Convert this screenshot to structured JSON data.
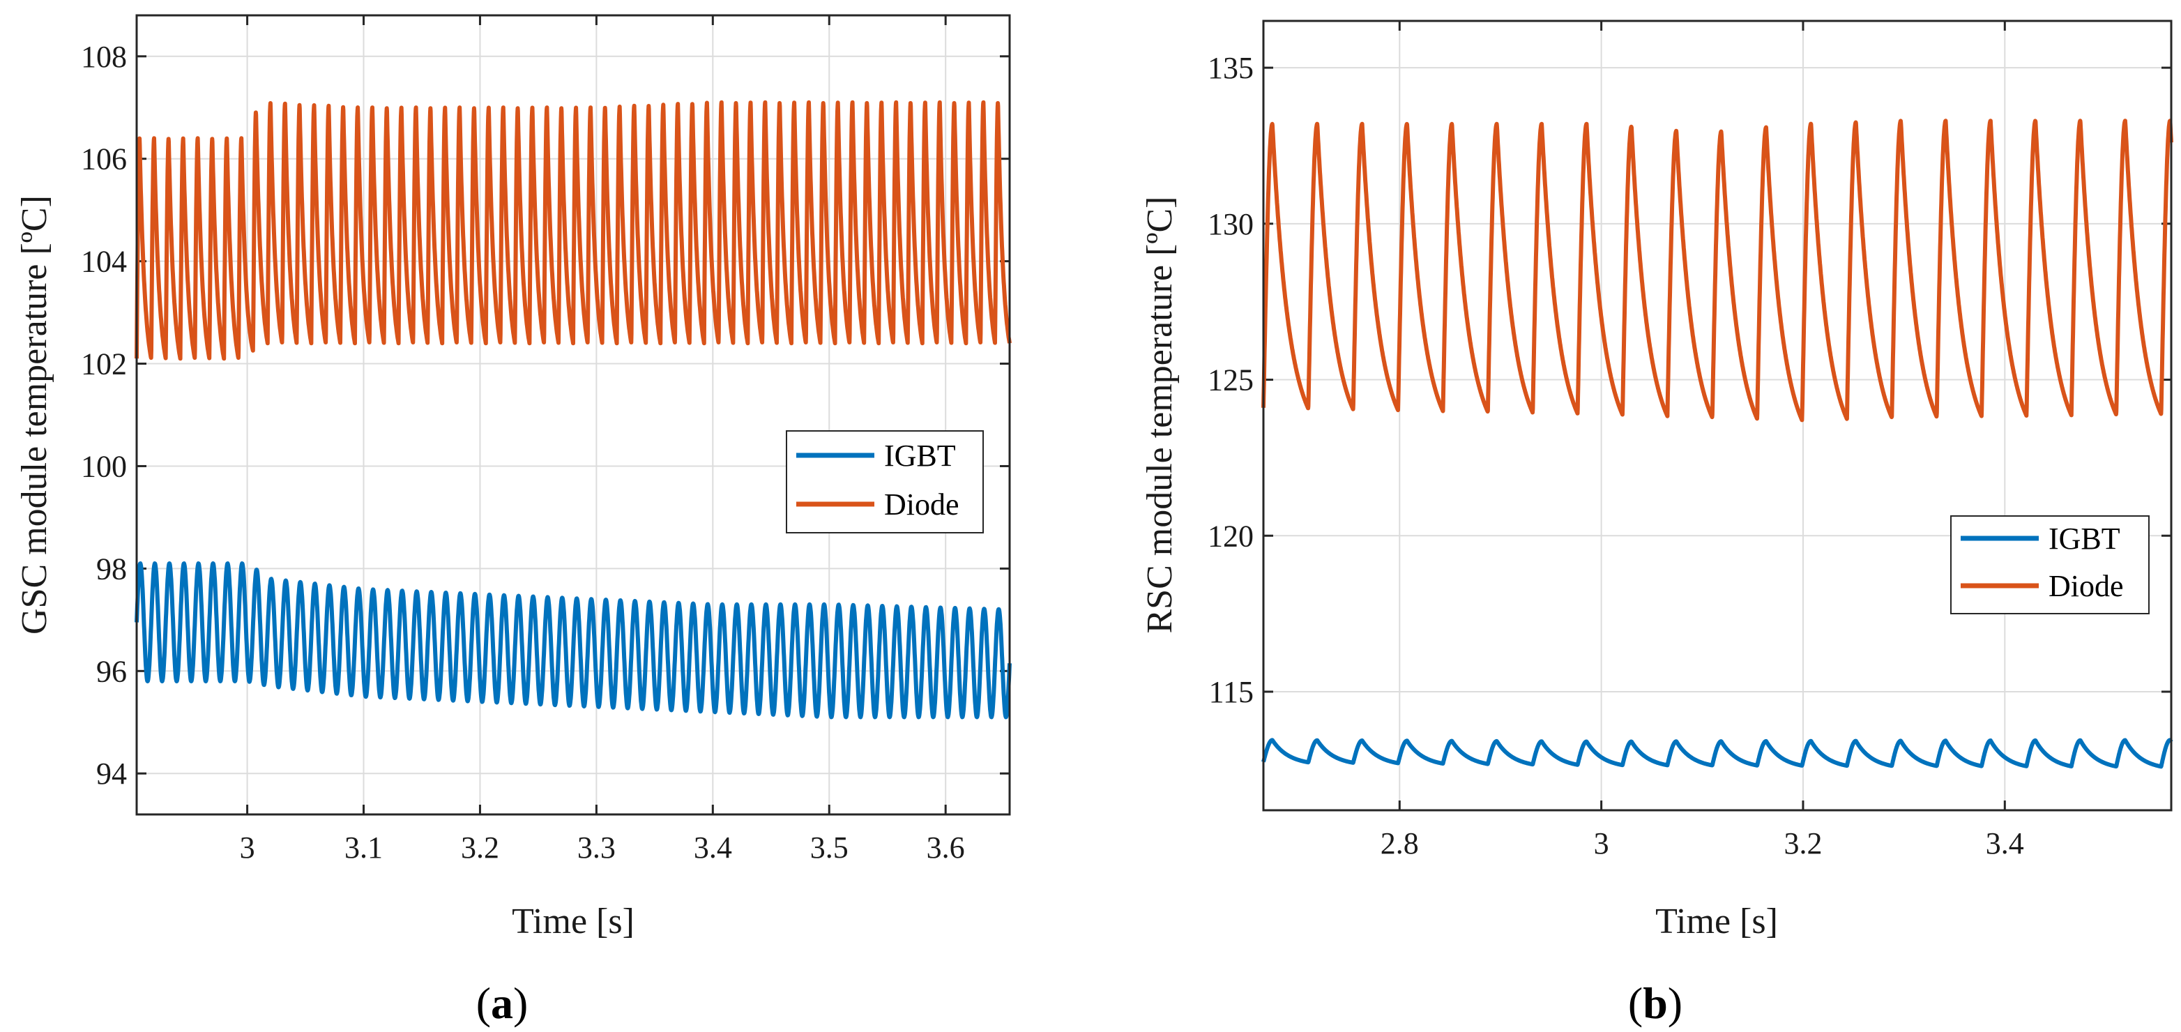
{
  "chart_data": [
    {
      "type": "line",
      "panel_label": {
        "open": "(",
        "letter": "a",
        "close": ")"
      },
      "title": "",
      "xlabel": "Time [s]",
      "ylabel": "GSC module temperature [ºC]",
      "xlim": [
        2.905,
        3.655
      ],
      "ylim": [
        93.2,
        108.8
      ],
      "xticks": [
        3.0,
        3.1,
        3.2,
        3.3,
        3.4,
        3.5,
        3.6
      ],
      "xtick_labels": [
        "3",
        "3.1",
        "3.2",
        "3.3",
        "3.4",
        "3.5",
        "3.6"
      ],
      "yticks": [
        94,
        96,
        98,
        100,
        102,
        104,
        106,
        108
      ],
      "ytick_labels": [
        "94",
        "96",
        "98",
        "100",
        "102",
        "104",
        "106",
        "108"
      ],
      "grid": true,
      "legend_position": "right-middle",
      "period_s": 0.0125,
      "series": [
        {
          "name": "IGBT",
          "color": "#0072BD",
          "waveform": "sine",
          "envelope_x": [
            2.905,
            3.0,
            3.02,
            3.1,
            3.2,
            3.3,
            3.4,
            3.5,
            3.655
          ],
          "envelope_max": [
            98.1,
            98.1,
            97.8,
            97.6,
            97.5,
            97.4,
            97.3,
            97.3,
            97.2
          ],
          "envelope_min": [
            95.8,
            95.8,
            95.7,
            95.5,
            95.4,
            95.3,
            95.2,
            95.1,
            95.1
          ]
        },
        {
          "name": "Diode",
          "color": "#D95319",
          "waveform": "sawtooth",
          "envelope_x": [
            2.905,
            3.0,
            3.01,
            3.1,
            3.2,
            3.3,
            3.4,
            3.5,
            3.655
          ],
          "envelope_max": [
            106.4,
            106.4,
            107.1,
            107.0,
            107.0,
            107.0,
            107.1,
            107.1,
            107.1
          ],
          "envelope_min": [
            102.1,
            102.1,
            102.4,
            102.4,
            102.4,
            102.4,
            102.4,
            102.4,
            102.4
          ]
        }
      ]
    },
    {
      "type": "line",
      "panel_label": {
        "open": "(",
        "letter": "b",
        "close": ")"
      },
      "title": "",
      "xlabel": "Time [s]",
      "ylabel": "RSC module temperature [ºC]",
      "xlim": [
        2.665,
        3.565
      ],
      "ylim": [
        111.2,
        136.5
      ],
      "xticks": [
        2.8,
        3.0,
        3.2,
        3.4
      ],
      "xtick_labels": [
        "2.8",
        "3",
        "3.2",
        "3.4"
      ],
      "yticks": [
        115,
        120,
        125,
        130,
        135
      ],
      "ytick_labels": [
        "115",
        "120",
        "125",
        "130",
        "135"
      ],
      "grid": true,
      "legend_position": "right-middle",
      "period_s": 0.0445,
      "series": [
        {
          "name": "IGBT",
          "color": "#0072BD",
          "waveform": "sawtooth",
          "envelope_x": [
            2.665,
            3.0,
            3.565
          ],
          "envelope_max": [
            113.45,
            113.4,
            113.45
          ],
          "envelope_min": [
            112.75,
            112.65,
            112.6
          ]
        },
        {
          "name": "Diode",
          "color": "#D95319",
          "waveform": "sawtooth",
          "envelope_x": [
            2.665,
            3.0,
            3.1,
            3.2,
            3.3,
            3.565
          ],
          "envelope_max": [
            133.2,
            133.2,
            132.9,
            133.2,
            133.3,
            133.3
          ],
          "envelope_min": [
            124.1,
            123.9,
            123.8,
            123.7,
            123.8,
            123.9
          ]
        }
      ]
    }
  ]
}
